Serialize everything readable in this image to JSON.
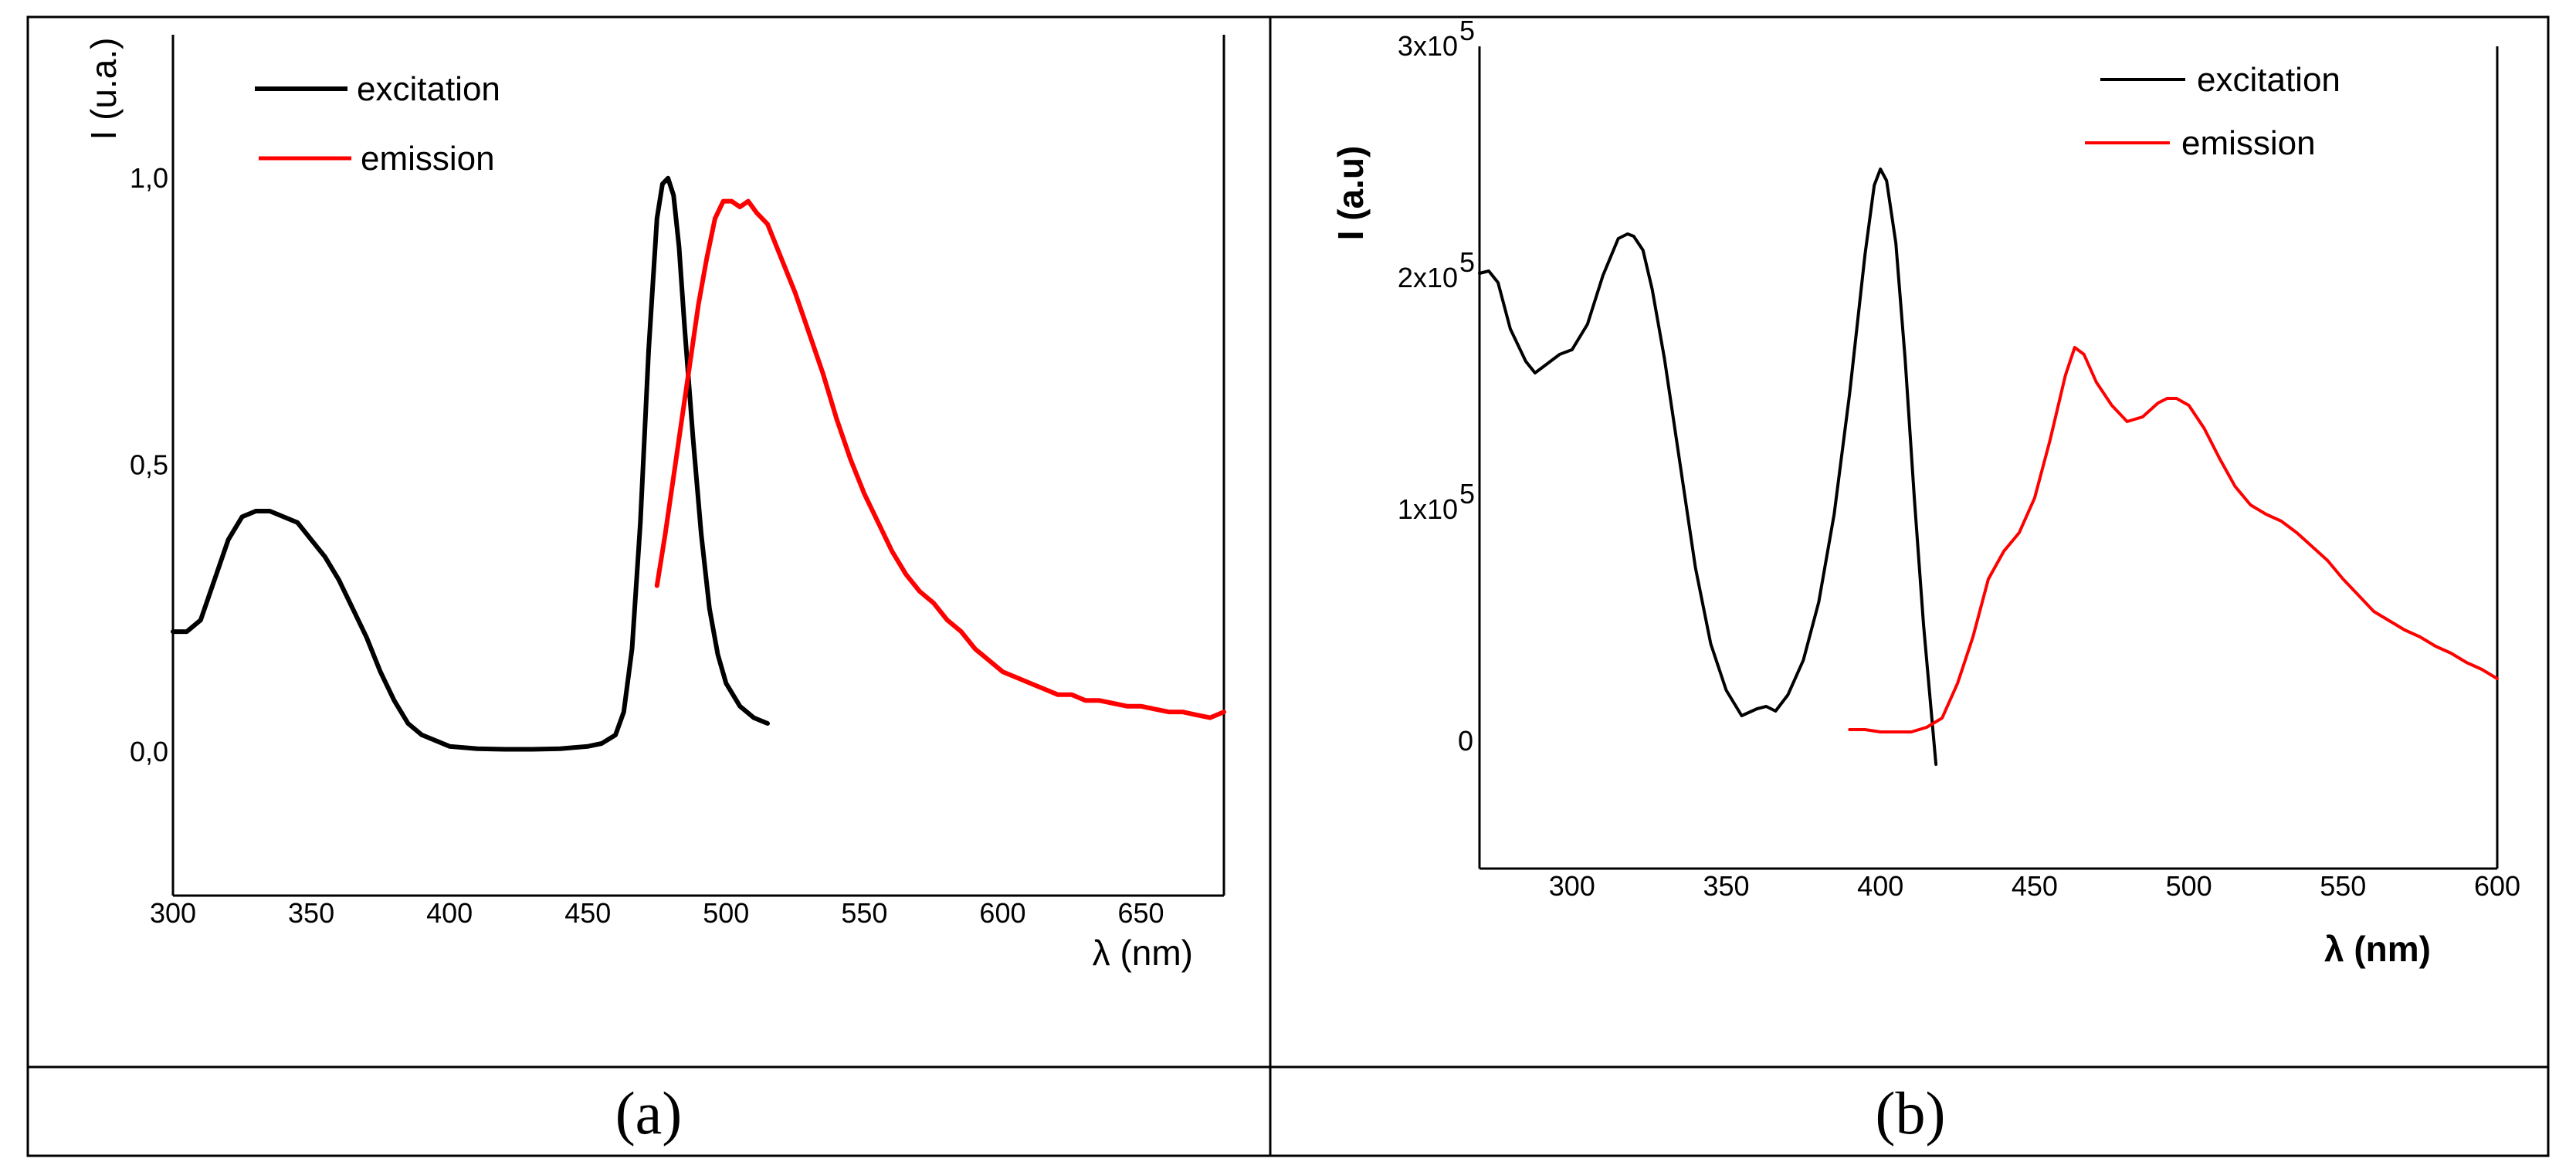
{
  "panel_captions": [
    "(a)",
    "(b)"
  ],
  "colors": {
    "excitation": "#000000",
    "emission": "#ff0000",
    "frame": "#000000"
  },
  "chart_data": [
    {
      "type": "line",
      "id": "a",
      "xlabel": "λ (nm)",
      "ylabel": "I (u.a.)",
      "xlim": [
        300,
        680
      ],
      "ylim": [
        -0.25,
        1.25
      ],
      "xticks": [
        300,
        350,
        400,
        450,
        500,
        550,
        600,
        650
      ],
      "yticks": [
        0.0,
        0.5,
        1.0
      ],
      "ytick_labels": [
        "0,0",
        "0,5",
        "1,0"
      ],
      "legend": {
        "position": "top-left",
        "entries": [
          "excitation",
          "emission"
        ]
      },
      "series": [
        {
          "name": "excitation",
          "color": "#000000",
          "x": [
            300,
            305,
            310,
            315,
            320,
            325,
            330,
            335,
            340,
            345,
            350,
            355,
            360,
            365,
            370,
            375,
            380,
            385,
            390,
            400,
            410,
            420,
            430,
            440,
            450,
            455,
            460,
            463,
            466,
            469,
            472,
            475,
            477,
            479,
            481,
            483,
            485,
            488,
            491,
            494,
            497,
            500,
            505,
            510,
            515
          ],
          "y": [
            0.21,
            0.21,
            0.23,
            0.3,
            0.37,
            0.41,
            0.42,
            0.42,
            0.41,
            0.4,
            0.37,
            0.34,
            0.3,
            0.25,
            0.2,
            0.14,
            0.09,
            0.05,
            0.03,
            0.01,
            0.006,
            0.005,
            0.005,
            0.006,
            0.01,
            0.015,
            0.03,
            0.07,
            0.18,
            0.4,
            0.7,
            0.93,
            0.99,
            1.0,
            0.97,
            0.88,
            0.74,
            0.55,
            0.38,
            0.25,
            0.17,
            0.12,
            0.08,
            0.06,
            0.05
          ]
        },
        {
          "name": "emission",
          "color": "#ff0000",
          "x": [
            475,
            478,
            481,
            484,
            487,
            490,
            493,
            496,
            499,
            502,
            505,
            508,
            511,
            515,
            520,
            525,
            530,
            535,
            540,
            545,
            550,
            555,
            560,
            565,
            570,
            575,
            580,
            585,
            590,
            595,
            600,
            605,
            610,
            615,
            620,
            625,
            630,
            635,
            640,
            645,
            650,
            655,
            660,
            665,
            670,
            675,
            680
          ],
          "y": [
            0.29,
            0.38,
            0.48,
            0.58,
            0.68,
            0.78,
            0.86,
            0.93,
            0.96,
            0.96,
            0.95,
            0.96,
            0.94,
            0.92,
            0.86,
            0.8,
            0.73,
            0.66,
            0.58,
            0.51,
            0.45,
            0.4,
            0.35,
            0.31,
            0.28,
            0.26,
            0.23,
            0.21,
            0.18,
            0.16,
            0.14,
            0.13,
            0.12,
            0.11,
            0.1,
            0.1,
            0.09,
            0.09,
            0.085,
            0.08,
            0.08,
            0.075,
            0.07,
            0.07,
            0.065,
            0.06,
            0.07
          ]
        }
      ]
    },
    {
      "type": "line",
      "id": "b",
      "xlabel": "λ (nm)",
      "ylabel": "I (a.u)",
      "xlim": [
        270,
        600
      ],
      "ylim": [
        -0.55,
        3.0
      ],
      "xticks": [
        300,
        350,
        400,
        450,
        500,
        550,
        600
      ],
      "yticks": [
        0,
        1,
        2,
        3
      ],
      "ytick_labels": [
        "0",
        "1x10",
        "2x10",
        "3x10"
      ],
      "ytick_exponent": "5",
      "legend": {
        "position": "top-right",
        "entries": [
          "excitation",
          "emission"
        ]
      },
      "series": [
        {
          "name": "excitation",
          "color": "#000000",
          "x": [
            270,
            273,
            276,
            280,
            285,
            288,
            292,
            296,
            300,
            305,
            310,
            315,
            318,
            320,
            323,
            326,
            330,
            335,
            340,
            345,
            350,
            355,
            360,
            363,
            366,
            370,
            375,
            380,
            385,
            390,
            395,
            398,
            400,
            402,
            405,
            408,
            411,
            414,
            417,
            418
          ],
          "y": [
            2.02,
            2.03,
            1.98,
            1.78,
            1.64,
            1.59,
            1.63,
            1.67,
            1.69,
            1.8,
            2.01,
            2.17,
            2.19,
            2.18,
            2.12,
            1.95,
            1.65,
            1.2,
            0.75,
            0.42,
            0.22,
            0.11,
            0.14,
            0.15,
            0.13,
            0.2,
            0.35,
            0.6,
            0.98,
            1.5,
            2.1,
            2.4,
            2.47,
            2.42,
            2.15,
            1.65,
            1.05,
            0.5,
            0.05,
            -0.1
          ]
        },
        {
          "name": "emission",
          "color": "#ff0000",
          "x": [
            390,
            395,
            400,
            405,
            410,
            415,
            420,
            425,
            430,
            435,
            440,
            445,
            450,
            455,
            460,
            463,
            466,
            470,
            475,
            480,
            485,
            490,
            493,
            496,
            500,
            505,
            510,
            515,
            520,
            525,
            530,
            535,
            540,
            545,
            550,
            555,
            560,
            565,
            570,
            575,
            580,
            585,
            590,
            595,
            600
          ],
          "y": [
            0.05,
            0.05,
            0.04,
            0.04,
            0.04,
            0.06,
            0.1,
            0.25,
            0.45,
            0.7,
            0.82,
            0.9,
            1.05,
            1.3,
            1.58,
            1.7,
            1.67,
            1.55,
            1.45,
            1.38,
            1.4,
            1.46,
            1.48,
            1.48,
            1.45,
            1.35,
            1.22,
            1.1,
            1.02,
            0.98,
            0.95,
            0.9,
            0.84,
            0.78,
            0.7,
            0.63,
            0.56,
            0.52,
            0.48,
            0.45,
            0.41,
            0.38,
            0.34,
            0.31,
            0.27
          ]
        }
      ]
    }
  ]
}
